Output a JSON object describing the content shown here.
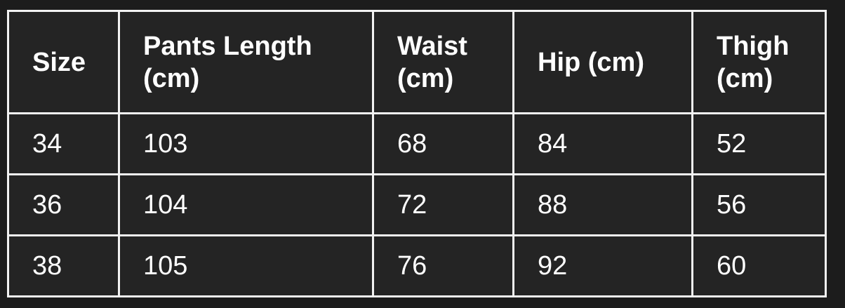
{
  "table": {
    "header": [
      "Size",
      "Pants Length (cm)",
      "Waist (cm)",
      "Hip (cm)",
      "Thigh (cm)"
    ],
    "rows": [
      [
        34,
        103,
        68,
        84,
        52
      ],
      [
        36,
        104,
        72,
        88,
        56
      ],
      [
        38,
        105,
        76,
        92,
        60
      ]
    ]
  }
}
